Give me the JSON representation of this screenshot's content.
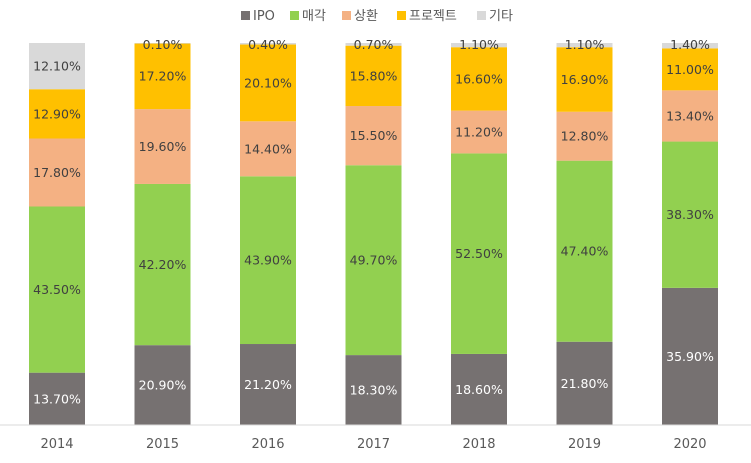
{
  "chart_data": {
    "type": "bar",
    "stacked": true,
    "percent": true,
    "title": "",
    "xlabel": "",
    "ylabel": "",
    "ylim": [
      0,
      100
    ],
    "grid": false,
    "legend_position": "top",
    "categories": [
      "2014",
      "2015",
      "2016",
      "2017",
      "2018",
      "2019",
      "2020"
    ],
    "series": [
      {
        "name": "IPO",
        "color": "#767171",
        "values": [
          13.7,
          20.9,
          21.2,
          18.3,
          18.6,
          21.8,
          35.9
        ],
        "labels": [
          "13.70%",
          "20.90%",
          "21.20%",
          "18.30%",
          "18.60%",
          "21.80%",
          "35.90%"
        ]
      },
      {
        "name": "매각",
        "color": "#92D050",
        "values": [
          43.5,
          42.2,
          43.9,
          49.7,
          52.5,
          47.4,
          38.3
        ],
        "labels": [
          "43.50%",
          "42.20%",
          "43.90%",
          "49.70%",
          "52.50%",
          "47.40%",
          "38.30%"
        ]
      },
      {
        "name": "상환",
        "color": "#F4B183",
        "values": [
          17.8,
          19.6,
          14.4,
          15.5,
          11.2,
          12.8,
          13.4
        ],
        "labels": [
          "17.80%",
          "19.60%",
          "14.40%",
          "15.50%",
          "11.20%",
          "12.80%",
          "13.40%"
        ]
      },
      {
        "name": "프로젝트",
        "color": "#FFC000",
        "values": [
          12.9,
          17.2,
          20.1,
          15.8,
          16.6,
          16.9,
          11.0
        ],
        "labels": [
          "12.90%",
          "17.20%",
          "20.10%",
          "15.80%",
          "16.60%",
          "16.90%",
          "11.00%"
        ]
      },
      {
        "name": "기타",
        "color": "#D9D9D9",
        "values": [
          12.1,
          0.1,
          0.4,
          0.7,
          1.1,
          1.1,
          1.4
        ],
        "labels": [
          "12.10%",
          "0.10%",
          "0.40%",
          "0.70%",
          "1.10%",
          "1.10%",
          "1.40%"
        ]
      }
    ]
  }
}
